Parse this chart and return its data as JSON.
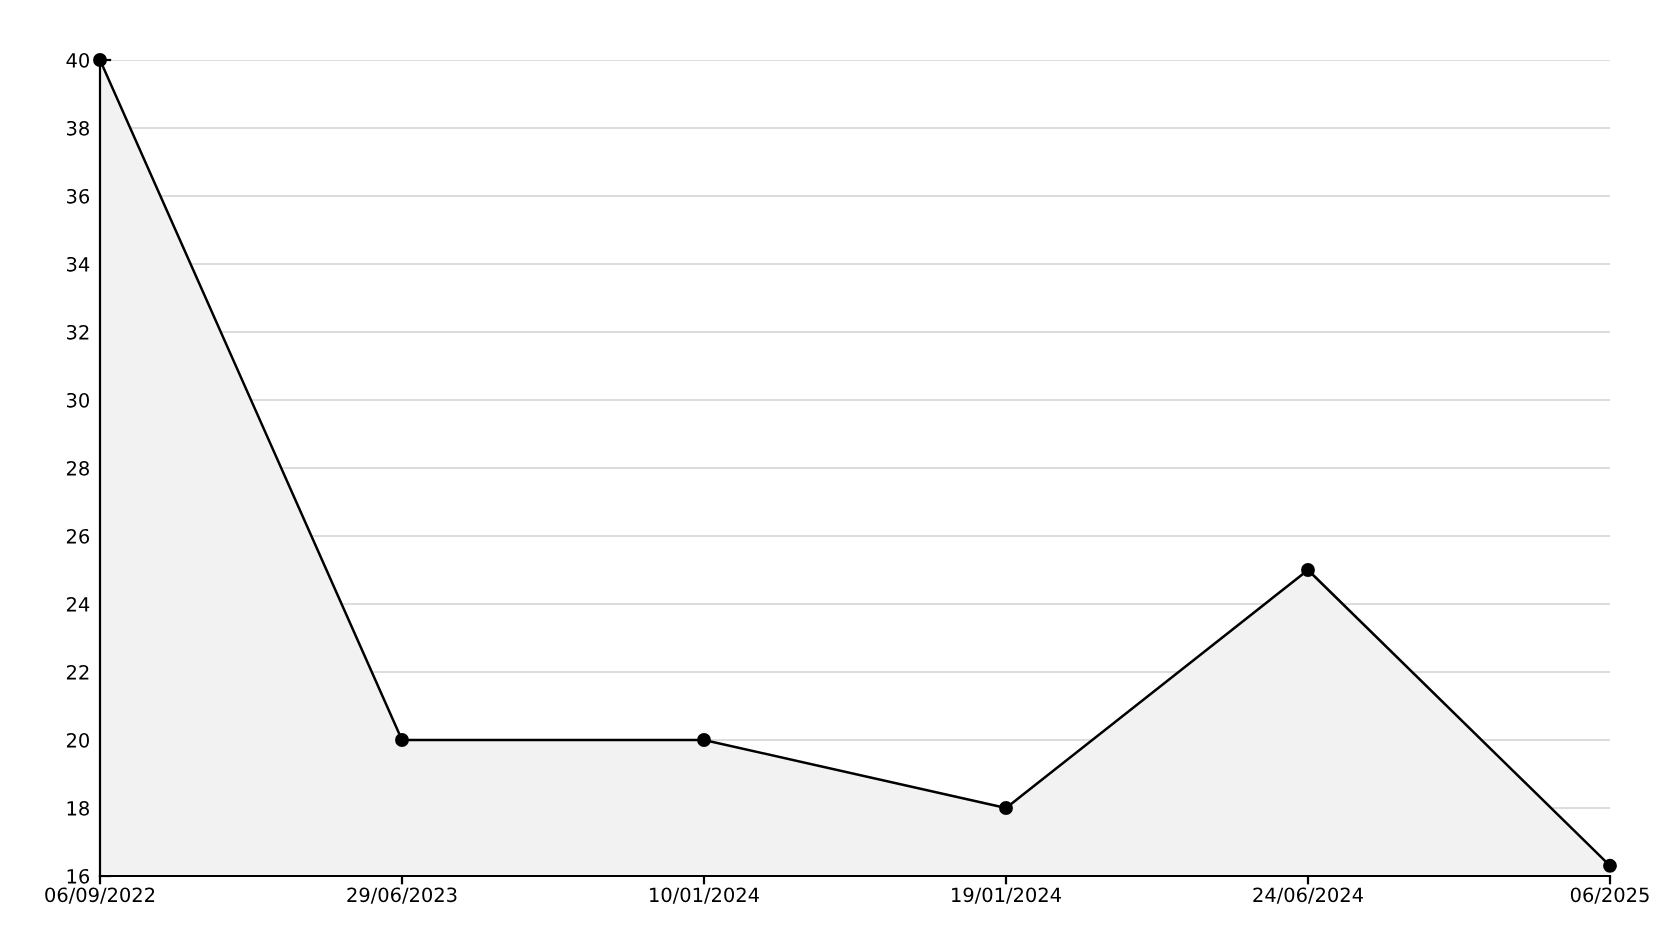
{
  "chart_data": {
    "type": "area",
    "categories": [
      "06/09/2022",
      "29/06/2023",
      "10/01/2024",
      "19/01/2024",
      "24/06/2024",
      "06/2025"
    ],
    "series": [
      {
        "color": "#000000",
        "values": [
          40,
          20,
          20,
          18,
          25,
          16.3
        ]
      }
    ],
    "ylim": [
      16,
      40
    ],
    "yticks": [
      16,
      18,
      20,
      22,
      24,
      26,
      28,
      30,
      32,
      34,
      36,
      38,
      40
    ],
    "grid": "y",
    "marker": "circle",
    "line_style": "solid",
    "legend": false
  }
}
